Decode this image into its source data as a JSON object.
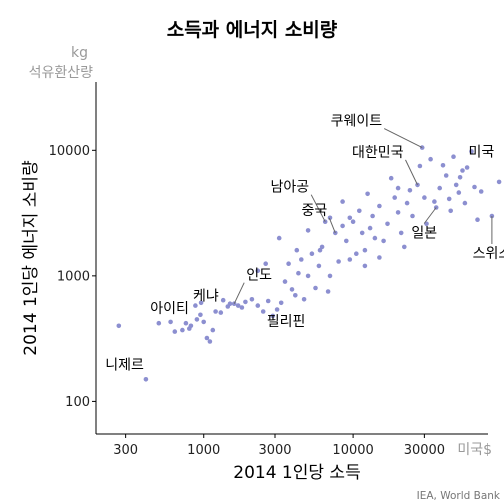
{
  "chart_data": {
    "type": "scatter",
    "title": "소득과 에너지 소비량",
    "xlabel": "2014 1인당 소득",
    "ylabel": "2014 1인당 에너지 소비량",
    "x_unit": "미국$",
    "y_unit": [
      "kg",
      "석유환산량"
    ],
    "x_scale": "log",
    "y_scale": "log",
    "xlim": [
      190,
      80000
    ],
    "ylim": [
      55,
      35000
    ],
    "x_ticks": [
      300,
      1000,
      3000,
      10000,
      30000
    ],
    "x_tick_labels": [
      "300",
      "1000",
      "3000",
      "10000",
      "30000"
    ],
    "y_ticks": [
      100,
      1000,
      10000
    ],
    "y_tick_labels": [
      "100",
      "1000",
      "10000"
    ],
    "grid": false,
    "caption": "IEA, World Bank",
    "point_color": "#8c8fd0",
    "annotations": [
      {
        "label": "쿠웨이트",
        "x": 29000,
        "y": 10500
      },
      {
        "label": "미국",
        "x": 54000,
        "y": 6900
      },
      {
        "label": "대한민국",
        "x": 27000,
        "y": 5300
      },
      {
        "label": "남아공",
        "x": 6500,
        "y": 2700
      },
      {
        "label": "중국",
        "x": 7600,
        "y": 2200
      },
      {
        "label": "일본",
        "x": 36000,
        "y": 3500
      },
      {
        "label": "스위스",
        "x": 85000,
        "y": 3000
      },
      {
        "label": "인도",
        "x": 1600,
        "y": 600
      },
      {
        "label": "케냐",
        "x": 1300,
        "y": 510
      },
      {
        "label": "아이티",
        "x": 820,
        "y": 400
      },
      {
        "label": "필리핀",
        "x": 2900,
        "y": 480
      },
      {
        "label": "니제르",
        "x": 410,
        "y": 150
      }
    ],
    "points": [
      [
        270,
        400
      ],
      [
        410,
        150
      ],
      [
        500,
        420
      ],
      [
        600,
        430
      ],
      [
        640,
        360
      ],
      [
        720,
        370
      ],
      [
        760,
        420
      ],
      [
        800,
        380
      ],
      [
        820,
        400
      ],
      [
        900,
        450
      ],
      [
        950,
        490
      ],
      [
        1000,
        430
      ],
      [
        1050,
        320
      ],
      [
        1100,
        300
      ],
      [
        880,
        580
      ],
      [
        960,
        610
      ],
      [
        1150,
        370
      ],
      [
        1200,
        520
      ],
      [
        1300,
        510
      ],
      [
        1350,
        640
      ],
      [
        1450,
        570
      ],
      [
        1500,
        600
      ],
      [
        1600,
        600
      ],
      [
        1700,
        580
      ],
      [
        1800,
        560
      ],
      [
        1900,
        620
      ],
      [
        2100,
        650
      ],
      [
        2300,
        580
      ],
      [
        2500,
        520
      ],
      [
        2700,
        630
      ],
      [
        2900,
        480
      ],
      [
        3100,
        540
      ],
      [
        3300,
        610
      ],
      [
        3500,
        900
      ],
      [
        3700,
        1250
      ],
      [
        3900,
        780
      ],
      [
        4100,
        700
      ],
      [
        4300,
        1050
      ],
      [
        4500,
        1350
      ],
      [
        4700,
        650
      ],
      [
        5000,
        1000
      ],
      [
        5300,
        1500
      ],
      [
        5600,
        800
      ],
      [
        5900,
        1200
      ],
      [
        6200,
        1700
      ],
      [
        6500,
        2700
      ],
      [
        6800,
        750
      ],
      [
        7000,
        1000
      ],
      [
        7600,
        2200
      ],
      [
        8000,
        1300
      ],
      [
        8500,
        2500
      ],
      [
        9000,
        1900
      ],
      [
        9500,
        1350
      ],
      [
        10000,
        2700
      ],
      [
        10500,
        1500
      ],
      [
        11000,
        3300
      ],
      [
        11500,
        2200
      ],
      [
        12000,
        1600
      ],
      [
        12500,
        4500
      ],
      [
        13000,
        2400
      ],
      [
        13500,
        3000
      ],
      [
        14000,
        2000
      ],
      [
        15000,
        3600
      ],
      [
        16000,
        1900
      ],
      [
        17000,
        2600
      ],
      [
        18000,
        6000
      ],
      [
        19000,
        4200
      ],
      [
        20000,
        3200
      ],
      [
        21000,
        2200
      ],
      [
        22000,
        1700
      ],
      [
        23000,
        3800
      ],
      [
        24000,
        4800
      ],
      [
        25000,
        3000
      ],
      [
        27000,
        5300
      ],
      [
        28000,
        7500
      ],
      [
        29000,
        10500
      ],
      [
        30000,
        4200
      ],
      [
        31000,
        2600
      ],
      [
        33000,
        8500
      ],
      [
        35000,
        3900
      ],
      [
        36000,
        3500
      ],
      [
        38000,
        5000
      ],
      [
        40000,
        7600
      ],
      [
        42000,
        6300
      ],
      [
        44000,
        4100
      ],
      [
        45000,
        3300
      ],
      [
        47000,
        8900
      ],
      [
        49000,
        5300
      ],
      [
        51000,
        4600
      ],
      [
        52000,
        6100
      ],
      [
        54000,
        6900
      ],
      [
        56000,
        3800
      ],
      [
        58000,
        7300
      ],
      [
        62000,
        9800
      ],
      [
        65000,
        5100
      ],
      [
        68000,
        2800
      ],
      [
        72000,
        4700
      ],
      [
        85000,
        3000
      ],
      [
        95000,
        5600
      ],
      [
        8500,
        3900
      ],
      [
        6000,
        1600
      ],
      [
        5000,
        2300
      ],
      [
        3200,
        2000
      ],
      [
        2600,
        1250
      ],
      [
        2300,
        1100
      ],
      [
        4200,
        1600
      ],
      [
        12000,
        1200
      ],
      [
        20000,
        5000
      ],
      [
        15000,
        1400
      ],
      [
        9500,
        2900
      ],
      [
        7000,
        2900
      ]
    ]
  }
}
